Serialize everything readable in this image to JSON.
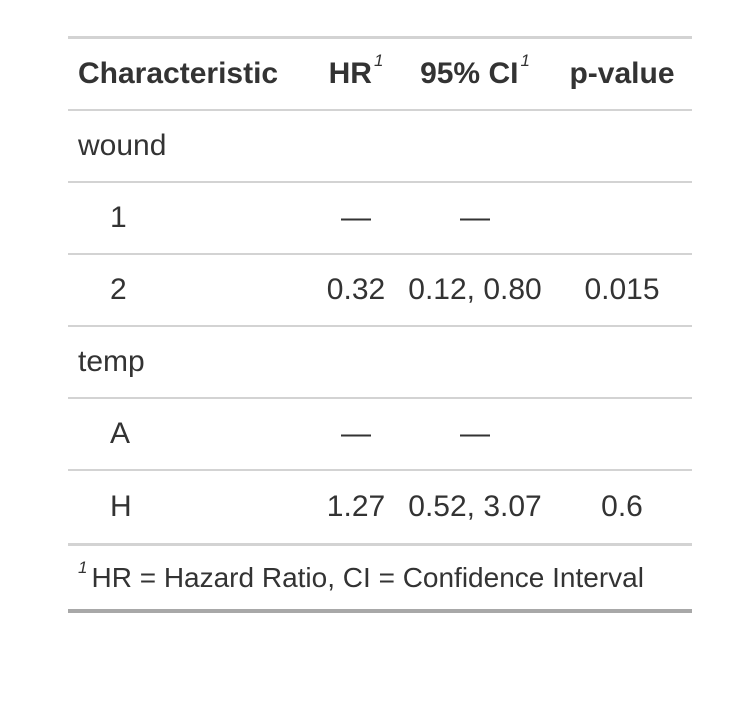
{
  "table": {
    "header": {
      "characteristic": "Characteristic",
      "hr": "HR",
      "ci": "95% CI",
      "pvalue": "p-value",
      "footnote_mark": "1"
    },
    "groups": [
      {
        "label": "wound",
        "rows": [
          {
            "level": "1",
            "hr": "—",
            "ci": "—",
            "p": ""
          },
          {
            "level": "2",
            "hr": "0.32",
            "ci": "0.12, 0.80",
            "p": "0.015"
          }
        ]
      },
      {
        "label": "temp",
        "rows": [
          {
            "level": "A",
            "hr": "—",
            "ci": "—",
            "p": ""
          },
          {
            "level": "H",
            "hr": "1.27",
            "ci": "0.52, 3.07",
            "p": "0.6"
          }
        ]
      }
    ],
    "footnote": {
      "mark": "1",
      "text": "HR = Hazard Ratio, CI = Confidence Interval"
    }
  }
}
